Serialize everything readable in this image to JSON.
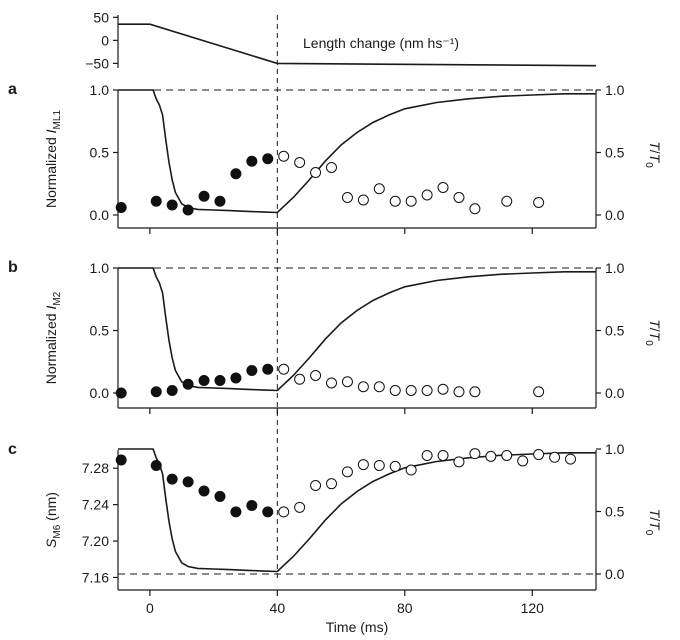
{
  "chart_data": [
    {
      "id": "top",
      "type": "line",
      "annotation": "Length change (nm hs⁻¹)",
      "ylim": [
        -60,
        55
      ],
      "yticks": [
        50,
        0,
        -50
      ],
      "ytick_labels": [
        "50",
        "0",
        "−50"
      ],
      "series": [
        {
          "x": [
            -10,
            0,
            40,
            140
          ],
          "y": [
            35,
            35,
            -50,
            -55
          ]
        }
      ]
    },
    {
      "id": "a",
      "type": "scatter",
      "panel_label": "a",
      "ylabel_main": "Normalized ",
      "ylabel_italic": "I",
      "ylabel_sub": "ML1",
      "y2label_main": "T",
      "y2label_sep": "/",
      "y2label_italic": "T",
      "y2label_sub": "0",
      "ylim": [
        -0.05,
        1.0
      ],
      "yticks": [
        0.0,
        0.5,
        1.0
      ],
      "ytick_labels": [
        "0.0",
        "0.5",
        "1.0"
      ],
      "y2ticks": [
        0.0,
        0.5,
        1.0
      ],
      "y2tick_labels": [
        "0.0",
        "0.5",
        "1.0"
      ],
      "hline": 1.0,
      "filled_points": [
        [
          -9,
          0.06
        ],
        [
          2,
          0.11
        ],
        [
          7,
          0.08
        ],
        [
          12,
          0.04
        ],
        [
          17,
          0.15
        ],
        [
          22,
          0.11
        ],
        [
          27,
          0.33
        ],
        [
          32,
          0.43
        ],
        [
          37,
          0.45
        ]
      ],
      "open_points": [
        [
          42,
          0.47
        ],
        [
          47,
          0.42
        ],
        [
          52,
          0.34
        ],
        [
          57,
          0.38
        ],
        [
          62,
          0.14
        ],
        [
          67,
          0.12
        ],
        [
          72,
          0.21
        ],
        [
          77,
          0.11
        ],
        [
          82,
          0.11
        ],
        [
          87,
          0.16
        ],
        [
          92,
          0.22
        ],
        [
          97,
          0.14
        ],
        [
          102,
          0.05
        ],
        [
          112,
          0.11
        ],
        [
          122,
          0.1
        ]
      ],
      "tension_curve": {
        "x": [
          -10,
          1,
          2,
          3,
          4,
          5,
          6,
          7,
          8,
          10,
          12,
          15,
          20,
          25,
          30,
          35,
          40,
          45,
          50,
          55,
          60,
          65,
          70,
          75,
          80,
          90,
          100,
          110,
          120,
          130,
          140
        ],
        "y": [
          1.0,
          1.0,
          0.93,
          0.88,
          0.8,
          0.6,
          0.42,
          0.28,
          0.18,
          0.09,
          0.06,
          0.045,
          0.04,
          0.035,
          0.03,
          0.025,
          0.02,
          0.14,
          0.28,
          0.43,
          0.56,
          0.66,
          0.74,
          0.8,
          0.85,
          0.9,
          0.93,
          0.95,
          0.96,
          0.97,
          0.97
        ]
      }
    },
    {
      "id": "b",
      "type": "scatter",
      "panel_label": "b",
      "ylabel_main": "Normalized ",
      "ylabel_italic": "I",
      "ylabel_sub": "M2",
      "y2label_main": "T",
      "y2label_sep": "/",
      "y2label_italic": "T",
      "y2label_sub": "0",
      "ylim": [
        -0.05,
        1.0
      ],
      "yticks": [
        0.0,
        0.5,
        1.0
      ],
      "ytick_labels": [
        "0.0",
        "0.5",
        "1.0"
      ],
      "y2ticks": [
        0.0,
        0.5,
        1.0
      ],
      "y2tick_labels": [
        "0.0",
        "0.5",
        "1.0"
      ],
      "hline": 1.0,
      "filled_points": [
        [
          -9,
          0.0
        ],
        [
          2,
          0.01
        ],
        [
          7,
          0.02
        ],
        [
          12,
          0.07
        ],
        [
          17,
          0.1
        ],
        [
          22,
          0.1
        ],
        [
          27,
          0.12
        ],
        [
          32,
          0.18
        ],
        [
          37,
          0.19
        ]
      ],
      "open_points": [
        [
          42,
          0.19
        ],
        [
          47,
          0.11
        ],
        [
          52,
          0.14
        ],
        [
          57,
          0.08
        ],
        [
          62,
          0.09
        ],
        [
          67,
          0.05
        ],
        [
          72,
          0.05
        ],
        [
          77,
          0.02
        ],
        [
          82,
          0.02
        ],
        [
          87,
          0.02
        ],
        [
          92,
          0.03
        ],
        [
          97,
          0.01
        ],
        [
          102,
          0.01
        ],
        [
          122,
          0.01
        ]
      ],
      "tension_curve": {
        "x": [
          -10,
          1,
          2,
          3,
          4,
          5,
          6,
          7,
          8,
          10,
          12,
          15,
          20,
          25,
          30,
          35,
          40,
          45,
          50,
          55,
          60,
          65,
          70,
          75,
          80,
          90,
          100,
          110,
          120,
          130,
          140
        ],
        "y": [
          1.0,
          1.0,
          0.93,
          0.88,
          0.8,
          0.6,
          0.42,
          0.28,
          0.18,
          0.09,
          0.06,
          0.045,
          0.04,
          0.035,
          0.03,
          0.025,
          0.02,
          0.14,
          0.28,
          0.43,
          0.56,
          0.66,
          0.74,
          0.8,
          0.85,
          0.9,
          0.93,
          0.95,
          0.96,
          0.97,
          0.97
        ]
      }
    },
    {
      "id": "c",
      "type": "scatter",
      "panel_label": "c",
      "ylabel_main": "S",
      "ylabel_italic_prefix": true,
      "ylabel_sub": "M6",
      "ylabel_unit": " (nm)",
      "y2label_main": "T",
      "y2label_sep": "/",
      "y2label_italic": "T",
      "y2label_sub": "0",
      "ylim": [
        7.155,
        7.3
      ],
      "yticks": [
        7.16,
        7.2,
        7.24,
        7.28
      ],
      "ytick_labels": [
        "7.16",
        "7.20",
        "7.24",
        "7.28"
      ],
      "y2ticks": [
        0.0,
        0.5,
        1.0
      ],
      "y2tick_labels": [
        "0.0",
        "0.5",
        "1.0"
      ],
      "hline_t": 0.0,
      "xlabel": "Time (ms)",
      "xticks": [
        0,
        40,
        80,
        120
      ],
      "xtick_labels": [
        "0",
        "40",
        "80",
        "120"
      ],
      "xlim": [
        -10,
        140
      ],
      "filled_points": [
        [
          -9,
          7.289
        ],
        [
          2,
          7.283
        ],
        [
          7,
          7.268
        ],
        [
          12,
          7.265
        ],
        [
          17,
          7.255
        ],
        [
          22,
          7.249
        ],
        [
          27,
          7.232
        ],
        [
          32,
          7.239
        ],
        [
          37,
          7.232
        ]
      ],
      "open_points": [
        [
          42,
          7.232
        ],
        [
          47,
          7.237
        ],
        [
          52,
          7.261
        ],
        [
          57,
          7.263
        ],
        [
          62,
          7.276
        ],
        [
          67,
          7.284
        ],
        [
          72,
          7.283
        ],
        [
          77,
          7.282
        ],
        [
          82,
          7.278
        ],
        [
          87,
          7.294
        ],
        [
          92,
          7.294
        ],
        [
          97,
          7.287
        ],
        [
          102,
          7.296
        ],
        [
          107,
          7.293
        ],
        [
          112,
          7.294
        ],
        [
          117,
          7.288
        ],
        [
          122,
          7.295
        ],
        [
          127,
          7.292
        ],
        [
          132,
          7.29
        ]
      ],
      "tension_curve": {
        "x": [
          -10,
          1,
          2,
          3,
          4,
          5,
          6,
          7,
          8,
          10,
          12,
          15,
          20,
          25,
          30,
          35,
          40,
          45,
          50,
          55,
          60,
          65,
          70,
          75,
          80,
          90,
          100,
          110,
          120,
          130,
          140
        ],
        "y": [
          1.0,
          1.0,
          0.93,
          0.88,
          0.8,
          0.6,
          0.42,
          0.28,
          0.18,
          0.09,
          0.06,
          0.045,
          0.04,
          0.035,
          0.03,
          0.025,
          0.02,
          0.14,
          0.28,
          0.43,
          0.56,
          0.66,
          0.74,
          0.8,
          0.85,
          0.9,
          0.93,
          0.95,
          0.96,
          0.97,
          0.97
        ]
      }
    }
  ]
}
